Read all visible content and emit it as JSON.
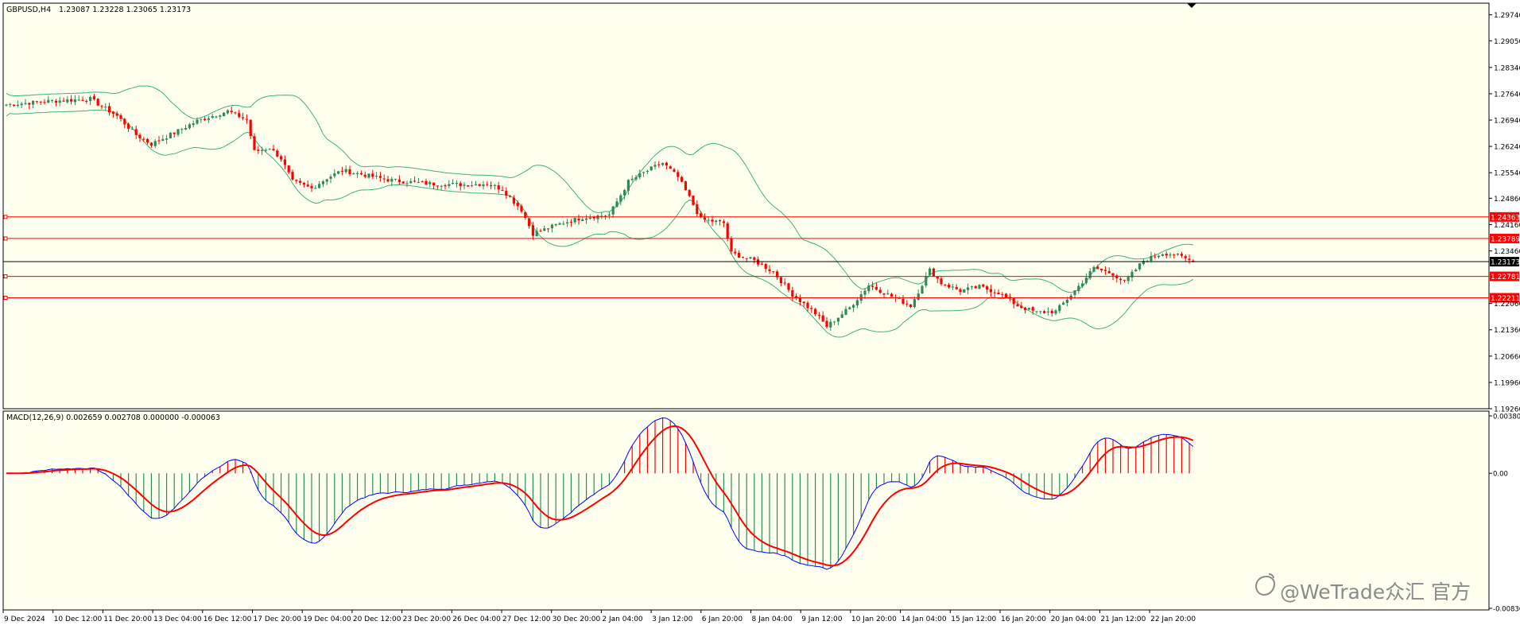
{
  "header": {
    "symbol_tf": "GBPUSD,H4",
    "ohlc": "1.23087 1.23228 1.23065 1.23173"
  },
  "macd_header": {
    "label": "MACD(12,26,9) 0.002659 0.002708 0.000000 -0.000063"
  },
  "watermark": "@WeTrade众汇 官方",
  "colors": {
    "background": "#fffff0",
    "bull": "#2e8b57",
    "bear": "#ff0000",
    "band": "#3cb371",
    "level": "#ff0000",
    "macd_line": "#0000ff",
    "signal_line": "#ff0000"
  },
  "price_axis": {
    "ticks": [
      "1.29740",
      "1.29050",
      "1.28340",
      "1.27640",
      "1.26940",
      "1.26240",
      "1.25540",
      "1.24860",
      "1.24160",
      "1.23460",
      "1.22060",
      "1.21360",
      "1.20660",
      "1.19960",
      "1.19260"
    ]
  },
  "levels": [
    {
      "price": 1.24363,
      "label": "1.24363"
    },
    {
      "price": 1.23789,
      "label": "1.23789"
    },
    {
      "price": 1.22781,
      "label": "1.22781"
    },
    {
      "price": 1.22211,
      "label": "1.22211"
    }
  ],
  "current_price": {
    "price": 1.23173,
    "label": "1.23173"
  },
  "macd_axis": {
    "ticks": [
      "0.003805",
      "0.00",
      "-0.00836"
    ]
  },
  "time_axis": {
    "labels": [
      "9 Dec 2024",
      "10 Dec 12:00",
      "11 Dec 20:00",
      "13 Dec 04:00",
      "16 Dec 12:00",
      "17 Dec 20:00",
      "19 Dec 04:00",
      "20 Dec 12:00",
      "23 Dec 20:00",
      "26 Dec 04:00",
      "27 Dec 12:00",
      "30 Dec 20:00",
      "2 Jan 04:00",
      "3 Jan 12:00",
      "6 Jan 20:00",
      "8 Jan 04:00",
      "9 Jan 12:00",
      "10 Jan 20:00",
      "14 Jan 04:00",
      "15 Jan 12:00",
      "16 Jan 20:00",
      "20 Jan 04:00",
      "21 Jan 12:00",
      "22 Jan 20:00"
    ]
  },
  "chart_data": {
    "type": "candlestick",
    "symbol": "GBPUSD",
    "timeframe": "H4",
    "ylim": [
      1.1926,
      1.3005
    ],
    "close_path": [
      [
        0,
        1.2735
      ],
      [
        12,
        1.2745
      ],
      [
        22,
        1.275
      ],
      [
        29,
        1.2705
      ],
      [
        34,
        1.2655
      ],
      [
        38,
        1.263
      ],
      [
        44,
        1.266
      ],
      [
        50,
        1.2692
      ],
      [
        54,
        1.2705
      ],
      [
        58,
        1.2718
      ],
      [
        63,
        1.2695
      ],
      [
        65,
        1.261
      ],
      [
        69,
        1.262
      ],
      [
        72,
        1.2592
      ],
      [
        75,
        1.253
      ],
      [
        80,
        1.2512
      ],
      [
        84,
        1.254
      ],
      [
        88,
        1.256
      ],
      [
        93,
        1.255
      ],
      [
        100,
        1.2535
      ],
      [
        110,
        1.2525
      ],
      [
        120,
        1.2522
      ],
      [
        126,
        1.2525
      ],
      [
        130,
        1.251
      ],
      [
        135,
        1.2455
      ],
      [
        138,
        1.2392
      ],
      [
        145,
        1.2418
      ],
      [
        151,
        1.2435
      ],
      [
        158,
        1.2442
      ],
      [
        163,
        1.253
      ],
      [
        169,
        1.2565
      ],
      [
        172,
        1.258
      ],
      [
        176,
        1.2542
      ],
      [
        179,
        1.2488
      ],
      [
        182,
        1.243
      ],
      [
        188,
        1.242
      ],
      [
        190,
        1.234
      ],
      [
        196,
        1.232
      ],
      [
        201,
        1.229
      ],
      [
        206,
        1.223
      ],
      [
        212,
        1.218
      ],
      [
        215,
        1.2145
      ],
      [
        221,
        1.2195
      ],
      [
        226,
        1.2255
      ],
      [
        232,
        1.2225
      ],
      [
        237,
        1.22
      ],
      [
        242,
        1.2295
      ],
      [
        245,
        1.226
      ],
      [
        250,
        1.224
      ],
      [
        255,
        1.225
      ],
      [
        260,
        1.2235
      ],
      [
        265,
        1.22
      ],
      [
        270,
        1.2182
      ],
      [
        275,
        1.2185
      ],
      [
        280,
        1.224
      ],
      [
        285,
        1.23
      ],
      [
        290,
        1.2285
      ],
      [
        293,
        1.2262
      ],
      [
        298,
        1.232
      ],
      [
        303,
        1.234
      ],
      [
        306,
        1.2337
      ],
      [
        311,
        1.2317
      ]
    ],
    "total_bars": 312,
    "bollinger": {
      "period": 20,
      "deviations": 2
    },
    "macd": {
      "fast": 12,
      "slow": 26,
      "signal": 9,
      "main": 0.002659,
      "signal_value": 0.002708,
      "histogram": 0.0,
      "last": -6.3e-05
    },
    "macd_ylim": [
      -0.00836,
      0.003805
    ]
  }
}
